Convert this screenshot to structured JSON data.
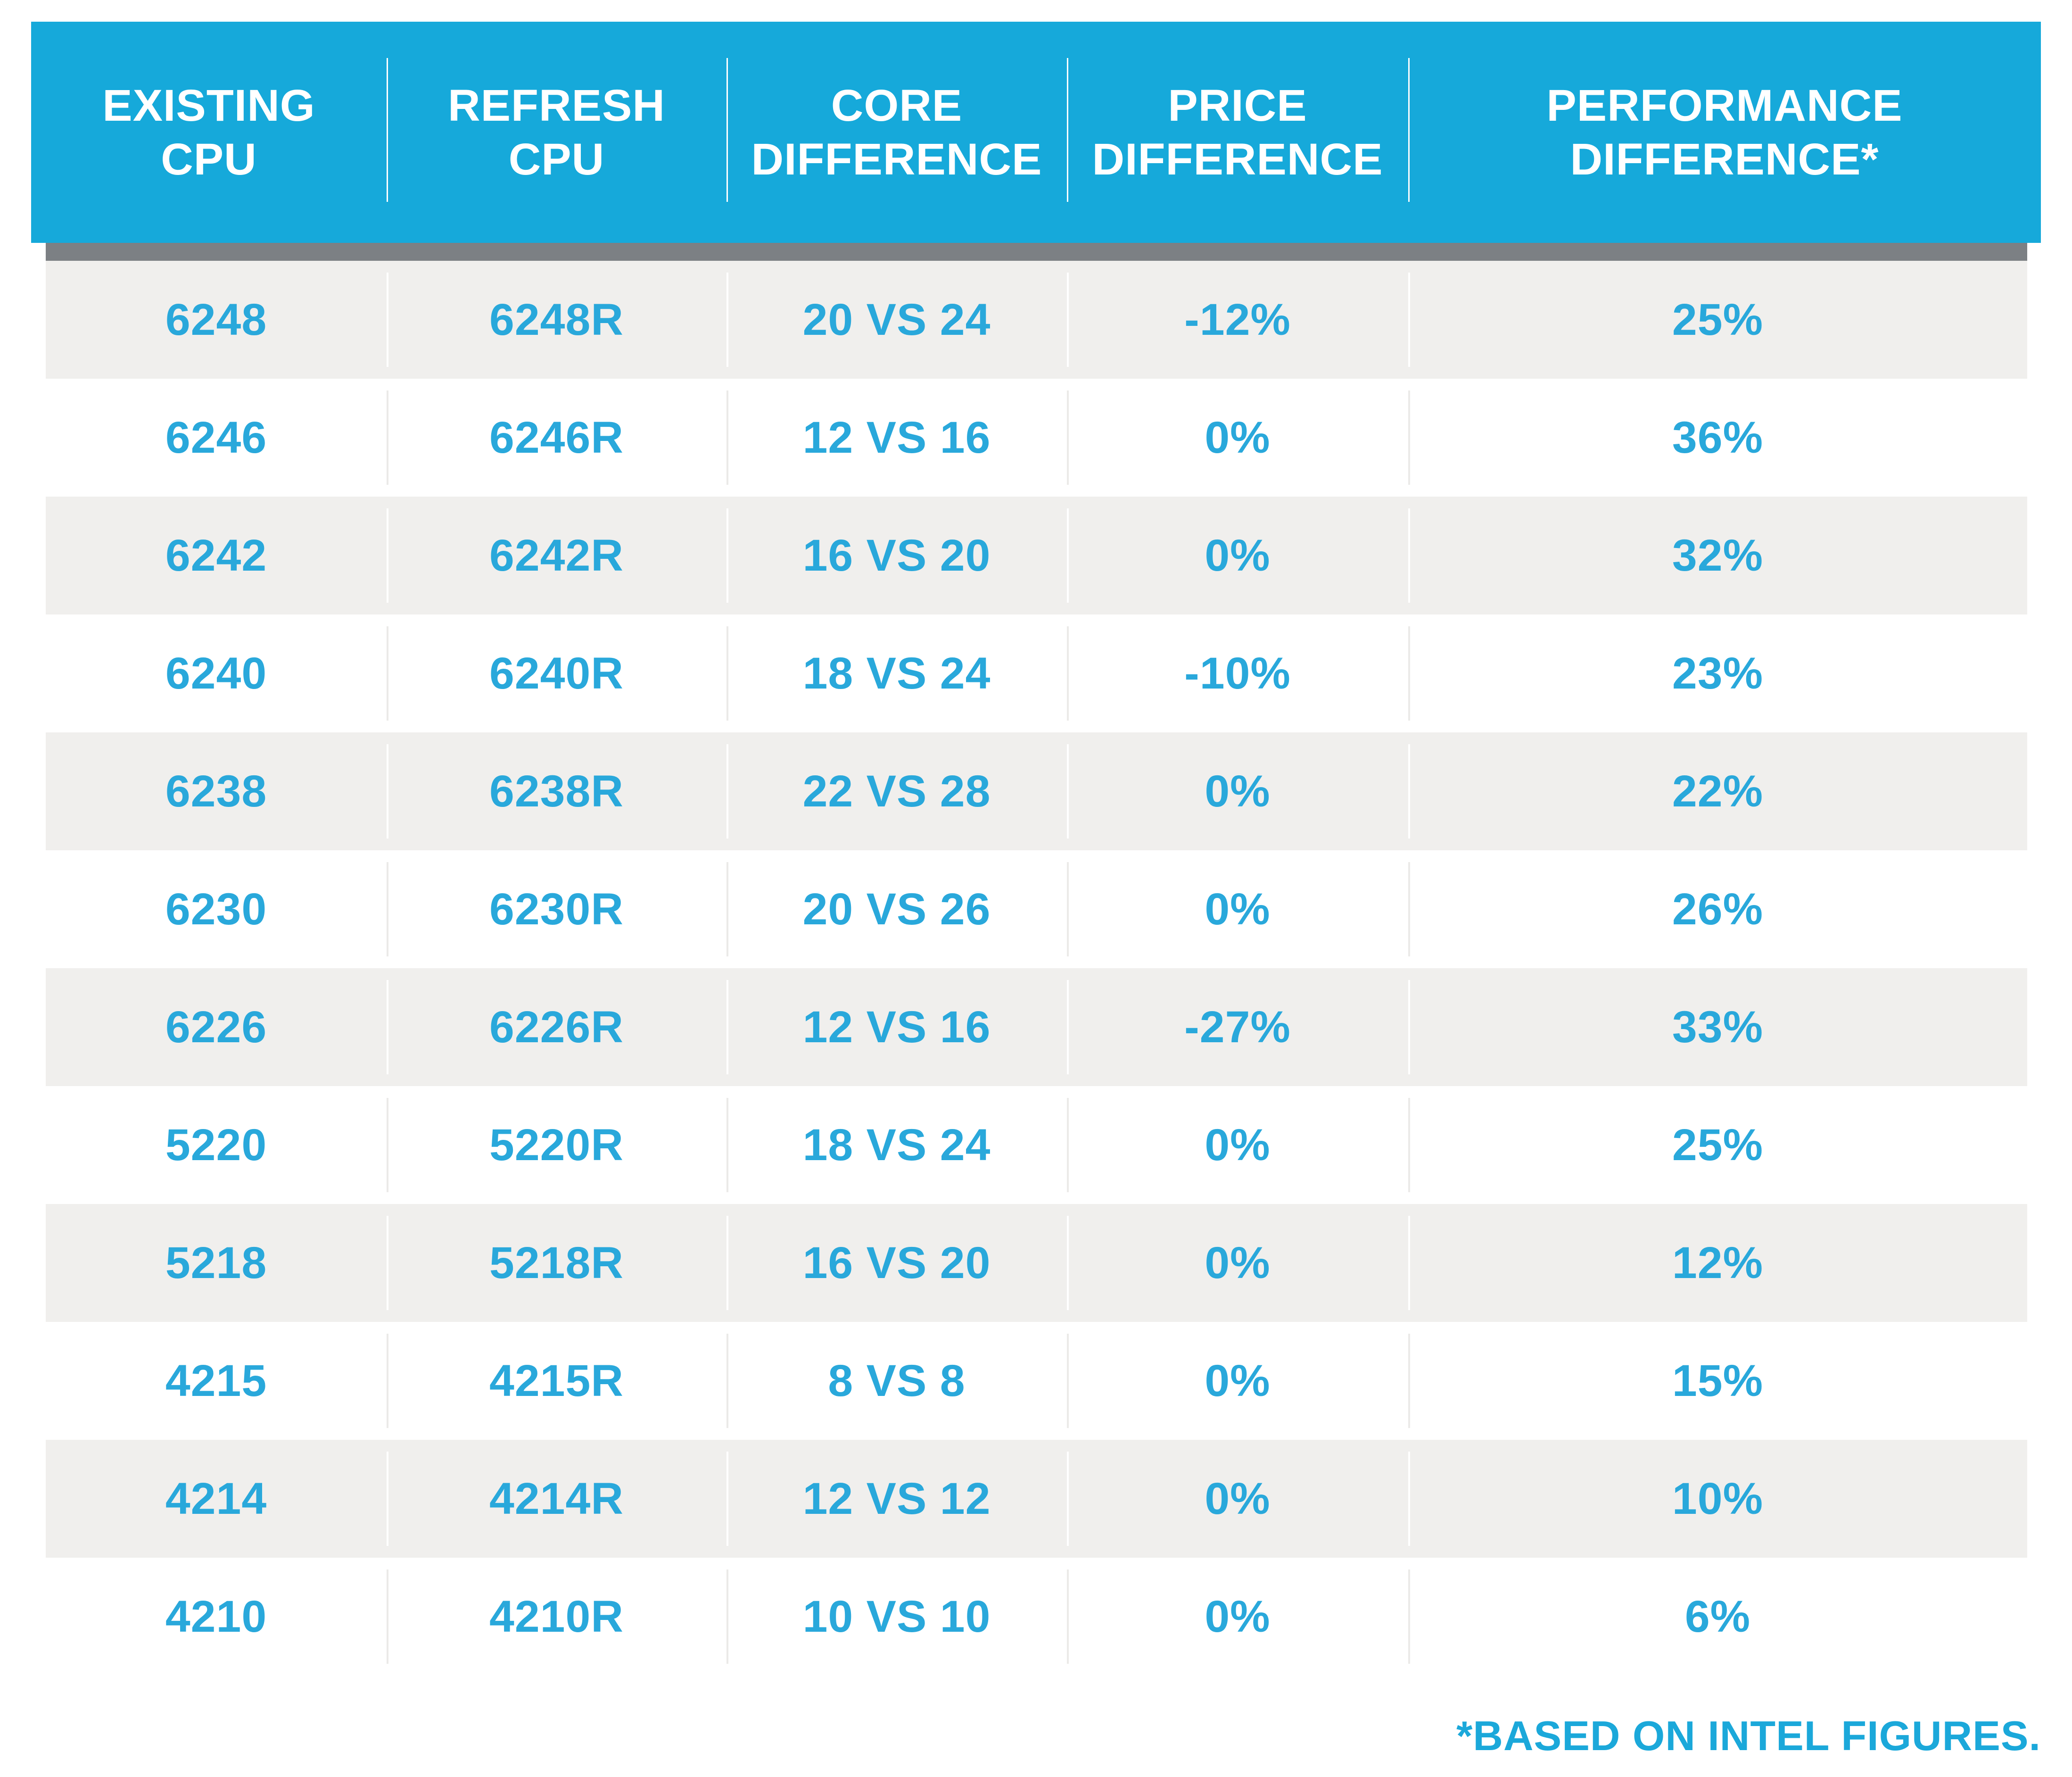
{
  "chart_data": {
    "type": "table",
    "columns": [
      "EXISTING CPU",
      "REFRESH CPU",
      "CORE DIFFERENCE",
      "PRICE DIFFERENCE",
      "PERFORMANCE DIFFERENCE*"
    ],
    "rows": [
      [
        "6248",
        "6248R",
        "20 VS 24",
        "-12%",
        "25%"
      ],
      [
        "6246",
        "6246R",
        "12 VS 16",
        "0%",
        "36%"
      ],
      [
        "6242",
        "6242R",
        "16 VS 20",
        "0%",
        "32%"
      ],
      [
        "6240",
        "6240R",
        "18 VS 24",
        "-10%",
        "23%"
      ],
      [
        "6238",
        "6238R",
        "22 VS 28",
        "0%",
        "22%"
      ],
      [
        "6230",
        "6230R",
        "20 VS 26",
        "0%",
        "26%"
      ],
      [
        "6226",
        "6226R",
        "12 VS 16",
        "-27%",
        "33%"
      ],
      [
        "5220",
        "5220R",
        "18 VS 24",
        "0%",
        "25%"
      ],
      [
        "5218",
        "5218R",
        "16 VS 20",
        "0%",
        "12%"
      ],
      [
        "4215",
        "4215R",
        "8 VS 8",
        "0%",
        "15%"
      ],
      [
        "4214",
        "4214R",
        "12 VS 12",
        "0%",
        "10%"
      ],
      [
        "4210",
        "4210R",
        "10 VS 10",
        "0%",
        "6%"
      ]
    ],
    "footnote": "*BASED ON INTEL FIGURES.",
    "title": "",
    "legend": "none",
    "grid": "off"
  },
  "header": {
    "columns": [
      {
        "label": "EXISTING\nCPU"
      },
      {
        "label": "REFRESH\nCPU"
      },
      {
        "label": "CORE\nDIFFERENCE"
      },
      {
        "label": "PRICE\nDIFFERENCE"
      },
      {
        "label": "PERFORMANCE\nDIFFERENCE*"
      }
    ]
  },
  "footnote": {
    "text": "*BASED ON INTEL FIGURES."
  },
  "colors": {
    "header_bg": "#16A9DA",
    "header_text": "#FFFFFF",
    "accent_text": "#29A8DB",
    "shadow_bar": "#7C8084",
    "row_alt_bg": "#F0EFED",
    "row_bg": "#FFFFFF",
    "footnote_text": "#1BA8DA"
  }
}
